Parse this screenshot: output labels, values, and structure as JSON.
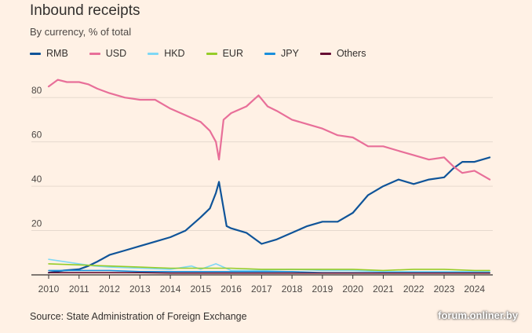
{
  "header": {
    "title": "Inbound receipts",
    "subtitle": "By currency, % of total"
  },
  "footer": {
    "source": "Source: State Administration of Foreign Exchange",
    "watermark": "forum.onliner.by"
  },
  "chart_data": {
    "type": "line",
    "title": "Inbound receipts",
    "subtitle": "By currency, % of total",
    "xlabel": "",
    "ylabel": "",
    "xlim": [
      2010,
      2024.6
    ],
    "ylim": [
      0,
      90
    ],
    "yticks": [
      20,
      40,
      60,
      80
    ],
    "xticks": [
      "2010",
      "2011",
      "2012",
      "2013",
      "2014",
      "2015",
      "2016",
      "2017",
      "2018",
      "2019",
      "2020",
      "2021",
      "2022",
      "2023",
      "2024"
    ],
    "grid": true,
    "legend_position": "top-left",
    "series": [
      {
        "name": "RMB",
        "color": "#0f5499",
        "x": [
          2010,
          2010.5,
          2011,
          2011.3,
          2011.6,
          2012,
          2012.5,
          2013,
          2013.5,
          2014,
          2014.5,
          2015,
          2015.3,
          2015.5,
          2015.6,
          2015.65,
          2015.75,
          2015.85,
          2016,
          2016.5,
          2017,
          2017.5,
          2018,
          2018.5,
          2019,
          2019.5,
          2020,
          2020.5,
          2021,
          2021.5,
          2022,
          2022.5,
          2023,
          2023.3,
          2023.6,
          2024,
          2024.5
        ],
        "y": [
          1,
          2,
          2.5,
          4,
          6,
          9,
          11,
          13,
          15,
          17,
          20,
          26,
          30,
          37,
          42,
          38,
          30,
          22,
          21,
          19,
          14,
          16,
          19,
          22,
          24,
          24,
          28,
          36,
          40,
          43,
          41,
          43,
          44,
          48,
          51,
          51,
          53
        ]
      },
      {
        "name": "USD",
        "color": "#e86f99",
        "x": [
          2010,
          2010.3,
          2010.6,
          2011,
          2011.3,
          2011.6,
          2012,
          2012.5,
          2013,
          2013.5,
          2014,
          2014.5,
          2015,
          2015.3,
          2015.5,
          2015.6,
          2015.75,
          2016,
          2016.5,
          2016.9,
          2017.2,
          2017.5,
          2018,
          2018.5,
          2019,
          2019.5,
          2020,
          2020.5,
          2021,
          2021.5,
          2022,
          2022.5,
          2023,
          2023.3,
          2023.6,
          2024,
          2024.5
        ],
        "y": [
          85,
          88,
          87,
          87,
          86,
          84,
          82,
          80,
          79,
          79,
          75,
          72,
          69,
          65,
          60,
          52,
          70,
          73,
          76,
          81,
          76,
          74,
          70,
          68,
          66,
          63,
          62,
          58,
          58,
          56,
          54,
          52,
          53,
          49,
          46,
          47,
          43
        ]
      },
      {
        "name": "HKD",
        "color": "#7fd8f5",
        "x": [
          2010,
          2010.5,
          2011,
          2011.5,
          2012,
          2013,
          2014,
          2014.7,
          2015,
          2015.5,
          2016,
          2017,
          2018,
          2019,
          2020,
          2021,
          2022,
          2023,
          2024,
          2024.5
        ],
        "y": [
          7,
          6,
          5,
          4,
          3.5,
          3,
          2.5,
          4,
          2.5,
          5,
          2,
          2,
          2.5,
          2,
          2,
          1.5,
          1.5,
          1.5,
          1.5,
          1.5
        ]
      },
      {
        "name": "EUR",
        "color": "#96cc28",
        "x": [
          2010,
          2011,
          2012,
          2013,
          2014,
          2015,
          2016,
          2017,
          2018,
          2019,
          2020,
          2021,
          2022,
          2023,
          2024,
          2024.5
        ],
        "y": [
          5,
          4.5,
          4,
          3.5,
          3,
          3,
          3,
          2.5,
          2.5,
          2.5,
          2.5,
          2,
          2.5,
          2.5,
          2,
          2
        ]
      },
      {
        "name": "JPY",
        "color": "#1a8fdc",
        "x": [
          2010,
          2011,
          2012,
          2013,
          2014,
          2015,
          2016,
          2017,
          2018,
          2019,
          2020,
          2021,
          2022,
          2023,
          2024,
          2024.5
        ],
        "y": [
          2,
          2,
          2,
          1.5,
          1.5,
          1.5,
          1.5,
          1.5,
          1.5,
          1,
          1,
          1,
          1,
          1,
          1,
          1
        ]
      },
      {
        "name": "Others",
        "color": "#660e33",
        "x": [
          2010,
          2011,
          2012,
          2013,
          2014,
          2015,
          2016,
          2017,
          2018,
          2019,
          2020,
          2021,
          2022,
          2023,
          2024,
          2024.5
        ],
        "y": [
          1,
          1,
          1,
          1,
          0.8,
          0.8,
          0.8,
          0.8,
          0.8,
          0.8,
          0.8,
          0.8,
          0.8,
          0.8,
          0.8,
          0.8
        ]
      }
    ]
  }
}
